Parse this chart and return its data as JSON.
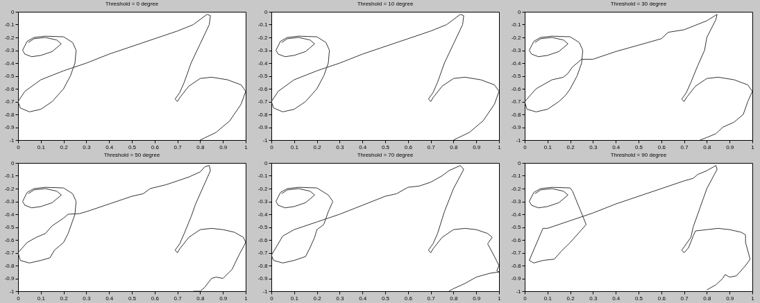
{
  "chart_data": [
    {
      "type": "line",
      "title": "Threshold = 0 degree",
      "xlim": [
        0,
        1
      ],
      "ylim": [
        -1,
        0
      ],
      "xticks": [
        0,
        0.1,
        0.2,
        0.3,
        0.4,
        0.5,
        0.6,
        0.7,
        0.8,
        0.9,
        1
      ],
      "yticks": [
        -1,
        -0.9,
        -0.8,
        -0.7,
        -0.6,
        -0.5,
        -0.4,
        -0.3,
        -0.2,
        -0.1,
        0
      ],
      "series": [
        {
          "color": "#333333",
          "x": [
            0.045,
            0.07,
            0.12,
            0.17,
            0.19,
            0.15,
            0.1,
            0.06,
            0.03,
            0.02,
            0.04,
            0.07,
            0.12,
            0.2,
            0.24,
            0.255,
            0.25,
            0.23,
            0.2,
            0.15,
            0.1,
            0.05,
            0.01,
            0,
            0.03,
            0.1,
            0.2,
            0.3,
            0.4,
            0.5,
            0.6,
            0.7,
            0.77,
            0.83,
            0.845,
            0.84,
            0.8,
            0.76,
            0.73,
            0.71,
            0.69,
            0.7,
            0.71,
            0.75,
            0.8,
            0.85,
            0.92,
            0.98,
            1.0,
            0.98,
            0.93,
            0.87,
            0.8
          ],
          "values": [
            -0.24,
            -0.21,
            -0.2,
            -0.22,
            -0.25,
            -0.31,
            -0.34,
            -0.35,
            -0.33,
            -0.3,
            -0.23,
            -0.2,
            -0.19,
            -0.195,
            -0.24,
            -0.3,
            -0.4,
            -0.5,
            -0.6,
            -0.7,
            -0.76,
            -0.78,
            -0.75,
            -0.7,
            -0.62,
            -0.53,
            -0.46,
            -0.4,
            -0.33,
            -0.27,
            -0.21,
            -0.15,
            -0.1,
            -0.02,
            -0.03,
            -0.1,
            -0.25,
            -0.4,
            -0.55,
            -0.63,
            -0.68,
            -0.7,
            -0.67,
            -0.58,
            -0.52,
            -0.51,
            -0.53,
            -0.57,
            -0.62,
            -0.72,
            -0.85,
            -0.94,
            -1.0
          ]
        }
      ]
    },
    {
      "type": "line",
      "title": "Threshold = 10 degree",
      "xlim": [
        0,
        1
      ],
      "ylim": [
        -1,
        0
      ],
      "xticks": [
        0,
        0.1,
        0.2,
        0.3,
        0.4,
        0.5,
        0.6,
        0.7,
        0.8,
        0.9,
        1
      ],
      "yticks": [
        -1,
        -0.9,
        -0.8,
        -0.7,
        -0.6,
        -0.5,
        -0.4,
        -0.3,
        -0.2,
        -0.1,
        0
      ],
      "series": [
        {
          "color": "#333333",
          "x": [
            0.045,
            0.07,
            0.12,
            0.17,
            0.19,
            0.15,
            0.1,
            0.06,
            0.03,
            0.02,
            0.04,
            0.07,
            0.12,
            0.2,
            0.24,
            0.255,
            0.25,
            0.23,
            0.2,
            0.15,
            0.1,
            0.05,
            0.01,
            0,
            0.03,
            0.1,
            0.2,
            0.3,
            0.4,
            0.5,
            0.6,
            0.7,
            0.77,
            0.83,
            0.845,
            0.84,
            0.8,
            0.76,
            0.73,
            0.71,
            0.69,
            0.7,
            0.71,
            0.75,
            0.8,
            0.85,
            0.92,
            0.98,
            1.0,
            0.98,
            0.93,
            0.87,
            0.8
          ],
          "values": [
            -0.24,
            -0.21,
            -0.2,
            -0.22,
            -0.25,
            -0.31,
            -0.34,
            -0.35,
            -0.33,
            -0.3,
            -0.23,
            -0.2,
            -0.19,
            -0.195,
            -0.24,
            -0.3,
            -0.4,
            -0.5,
            -0.6,
            -0.7,
            -0.76,
            -0.78,
            -0.75,
            -0.7,
            -0.62,
            -0.53,
            -0.46,
            -0.4,
            -0.33,
            -0.27,
            -0.21,
            -0.15,
            -0.1,
            -0.02,
            -0.03,
            -0.1,
            -0.25,
            -0.4,
            -0.55,
            -0.63,
            -0.68,
            -0.7,
            -0.67,
            -0.58,
            -0.52,
            -0.51,
            -0.53,
            -0.57,
            -0.62,
            -0.72,
            -0.85,
            -0.94,
            -1.0
          ]
        }
      ]
    },
    {
      "type": "line",
      "title": "Threshold = 30 degree",
      "xlim": [
        0,
        1
      ],
      "ylim": [
        -1,
        0
      ],
      "xticks": [
        0,
        0.1,
        0.2,
        0.3,
        0.4,
        0.5,
        0.6,
        0.7,
        0.8,
        0.9,
        1
      ],
      "yticks": [
        -1,
        -0.9,
        -0.8,
        -0.7,
        -0.6,
        -0.5,
        -0.4,
        -0.3,
        -0.2,
        -0.1,
        0
      ],
      "series": [
        {
          "color": "#333333",
          "x": [
            0.045,
            0.07,
            0.12,
            0.17,
            0.19,
            0.15,
            0.1,
            0.06,
            0.03,
            0.02,
            0.04,
            0.07,
            0.12,
            0.2,
            0.24,
            0.255,
            0.25,
            0.23,
            0.2,
            0.18,
            0.15,
            0.1,
            0.05,
            0.01,
            0,
            0.05,
            0.12,
            0.17,
            0.19,
            0.21,
            0.25,
            0.3,
            0.4,
            0.5,
            0.6,
            0.63,
            0.7,
            0.8,
            0.845,
            0.84,
            0.8,
            0.79,
            0.76,
            0.73,
            0.71,
            0.69,
            0.7,
            0.71,
            0.75,
            0.8,
            0.85,
            0.92,
            0.98,
            1.0,
            0.98,
            0.96,
            0.92,
            0.87,
            0.84,
            0.8,
            0.77
          ],
          "values": [
            -0.24,
            -0.21,
            -0.2,
            -0.22,
            -0.25,
            -0.31,
            -0.34,
            -0.35,
            -0.33,
            -0.3,
            -0.23,
            -0.2,
            -0.19,
            -0.195,
            -0.24,
            -0.3,
            -0.4,
            -0.5,
            -0.6,
            -0.65,
            -0.7,
            -0.76,
            -0.78,
            -0.76,
            -0.7,
            -0.6,
            -0.53,
            -0.51,
            -0.48,
            -0.43,
            -0.37,
            -0.37,
            -0.31,
            -0.26,
            -0.21,
            -0.16,
            -0.14,
            -0.07,
            -0.02,
            -0.06,
            -0.2,
            -0.3,
            -0.42,
            -0.55,
            -0.63,
            -0.68,
            -0.7,
            -0.67,
            -0.58,
            -0.52,
            -0.51,
            -0.53,
            -0.57,
            -0.62,
            -0.7,
            -0.8,
            -0.86,
            -0.9,
            -0.95,
            -0.98,
            -1.0
          ]
        }
      ]
    },
    {
      "type": "line",
      "title": "Threshold = 50 degree",
      "xlim": [
        0,
        1
      ],
      "ylim": [
        -1,
        0
      ],
      "xticks": [
        0,
        0.1,
        0.2,
        0.3,
        0.4,
        0.5,
        0.6,
        0.7,
        0.8,
        0.9,
        1
      ],
      "yticks": [
        -1,
        -0.9,
        -0.8,
        -0.7,
        -0.6,
        -0.5,
        -0.4,
        -0.3,
        -0.2,
        -0.1,
        0
      ],
      "series": [
        {
          "color": "#333333",
          "x": [
            0.045,
            0.07,
            0.12,
            0.17,
            0.19,
            0.15,
            0.1,
            0.06,
            0.03,
            0.02,
            0.04,
            0.07,
            0.12,
            0.2,
            0.24,
            0.255,
            0.25,
            0.22,
            0.2,
            0.16,
            0.14,
            0.1,
            0.05,
            0.01,
            0,
            0.04,
            0.08,
            0.12,
            0.15,
            0.2,
            0.22,
            0.27,
            0.3,
            0.4,
            0.5,
            0.55,
            0.58,
            0.65,
            0.75,
            0.8,
            0.82,
            0.84,
            0.845,
            0.81,
            0.78,
            0.76,
            0.73,
            0.71,
            0.69,
            0.7,
            0.71,
            0.75,
            0.8,
            0.85,
            0.9,
            0.95,
            0.99,
            1.0,
            0.97,
            0.94,
            0.9,
            0.87,
            0.85,
            0.82,
            0.8,
            0.77
          ],
          "values": [
            -0.24,
            -0.21,
            -0.2,
            -0.22,
            -0.25,
            -0.31,
            -0.34,
            -0.35,
            -0.33,
            -0.3,
            -0.23,
            -0.2,
            -0.19,
            -0.195,
            -0.24,
            -0.3,
            -0.4,
            -0.55,
            -0.62,
            -0.68,
            -0.74,
            -0.76,
            -0.78,
            -0.76,
            -0.7,
            -0.62,
            -0.58,
            -0.55,
            -0.49,
            -0.43,
            -0.4,
            -0.395,
            -0.38,
            -0.32,
            -0.26,
            -0.24,
            -0.2,
            -0.17,
            -0.11,
            -0.07,
            -0.03,
            -0.02,
            -0.06,
            -0.2,
            -0.32,
            -0.42,
            -0.55,
            -0.63,
            -0.68,
            -0.7,
            -0.67,
            -0.58,
            -0.52,
            -0.51,
            -0.52,
            -0.54,
            -0.58,
            -0.62,
            -0.72,
            -0.83,
            -0.9,
            -0.89,
            -0.9,
            -0.97,
            -1.0,
            -1.0
          ]
        }
      ]
    },
    {
      "type": "line",
      "title": "Threshold = 70 degree",
      "xlim": [
        0,
        1
      ],
      "ylim": [
        -1,
        0
      ],
      "xticks": [
        0,
        0.1,
        0.2,
        0.3,
        0.4,
        0.5,
        0.6,
        0.7,
        0.8,
        0.9,
        1
      ],
      "yticks": [
        -1,
        -0.9,
        -0.8,
        -0.7,
        -0.6,
        -0.5,
        -0.4,
        -0.3,
        -0.2,
        -0.1,
        0
      ],
      "series": [
        {
          "color": "#333333",
          "x": [
            0.045,
            0.07,
            0.12,
            0.17,
            0.19,
            0.15,
            0.1,
            0.06,
            0.03,
            0.02,
            0.04,
            0.07,
            0.12,
            0.2,
            0.25,
            0.27,
            0.25,
            0.23,
            0.2,
            0.19,
            0.17,
            0.15,
            0.1,
            0.05,
            0.01,
            0,
            0.05,
            0.1,
            0.2,
            0.3,
            0.4,
            0.5,
            0.55,
            0.6,
            0.65,
            0.7,
            0.75,
            0.78,
            0.83,
            0.845,
            0.8,
            0.76,
            0.73,
            0.71,
            0.69,
            0.7,
            0.71,
            0.75,
            0.8,
            0.85,
            0.9,
            0.95,
            0.97,
            0.95,
            0.98,
            1.0,
            0.99,
            1.0,
            0.96,
            0.9,
            0.85,
            0.8,
            0.78
          ],
          "values": [
            -0.24,
            -0.21,
            -0.2,
            -0.22,
            -0.25,
            -0.31,
            -0.34,
            -0.35,
            -0.33,
            -0.3,
            -0.23,
            -0.2,
            -0.19,
            -0.195,
            -0.25,
            -0.3,
            -0.38,
            -0.48,
            -0.52,
            -0.58,
            -0.66,
            -0.73,
            -0.76,
            -0.78,
            -0.76,
            -0.72,
            -0.57,
            -0.52,
            -0.46,
            -0.4,
            -0.33,
            -0.26,
            -0.24,
            -0.19,
            -0.18,
            -0.15,
            -0.1,
            -0.06,
            -0.02,
            -0.05,
            -0.2,
            -0.38,
            -0.55,
            -0.63,
            -0.68,
            -0.7,
            -0.67,
            -0.58,
            -0.52,
            -0.51,
            -0.52,
            -0.55,
            -0.58,
            -0.63,
            -0.73,
            -0.8,
            -0.84,
            -0.85,
            -0.86,
            -0.89,
            -0.94,
            -0.98,
            -1.0
          ]
        }
      ]
    },
    {
      "type": "line",
      "title": "Threshold = 90 degree",
      "xlim": [
        0,
        1
      ],
      "ylim": [
        -1,
        0
      ],
      "xticks": [
        0,
        0.1,
        0.2,
        0.3,
        0.4,
        0.5,
        0.6,
        0.7,
        0.8,
        0.9,
        1
      ],
      "yticks": [
        -1,
        -0.9,
        -0.8,
        -0.7,
        -0.6,
        -0.5,
        -0.4,
        -0.3,
        -0.2,
        -0.1,
        0
      ],
      "series": [
        {
          "color": "#333333",
          "x": [
            0.045,
            0.07,
            0.12,
            0.17,
            0.19,
            0.15,
            0.1,
            0.06,
            0.03,
            0.02,
            0.04,
            0.07,
            0.12,
            0.2,
            0.21,
            0.27,
            0.25,
            0.2,
            0.16,
            0.13,
            0.08,
            0.04,
            0.02,
            0.08,
            0.1,
            0.2,
            0.3,
            0.4,
            0.5,
            0.6,
            0.7,
            0.74,
            0.76,
            0.8,
            0.84,
            0.845,
            0.8,
            0.77,
            0.74,
            0.73,
            0.71,
            0.69,
            0.7,
            0.72,
            0.74,
            0.75,
            0.8,
            0.85,
            0.9,
            0.95,
            0.97,
            0.97,
            0.99,
            0.97,
            0.93,
            0.9,
            0.88,
            0.87,
            0.84,
            0.8
          ],
          "values": [
            -0.24,
            -0.21,
            -0.2,
            -0.22,
            -0.25,
            -0.31,
            -0.34,
            -0.35,
            -0.33,
            -0.3,
            -0.23,
            -0.2,
            -0.19,
            -0.195,
            -0.22,
            -0.48,
            -0.52,
            -0.62,
            -0.69,
            -0.75,
            -0.76,
            -0.78,
            -0.76,
            -0.51,
            -0.51,
            -0.45,
            -0.39,
            -0.32,
            -0.26,
            -0.2,
            -0.14,
            -0.12,
            -0.09,
            -0.06,
            -0.02,
            -0.05,
            -0.2,
            -0.35,
            -0.5,
            -0.58,
            -0.63,
            -0.68,
            -0.7,
            -0.66,
            -0.57,
            -0.53,
            -0.52,
            -0.51,
            -0.52,
            -0.54,
            -0.56,
            -0.62,
            -0.75,
            -0.8,
            -0.88,
            -0.89,
            -0.87,
            -0.9,
            -0.95,
            -0.99
          ]
        }
      ]
    }
  ]
}
